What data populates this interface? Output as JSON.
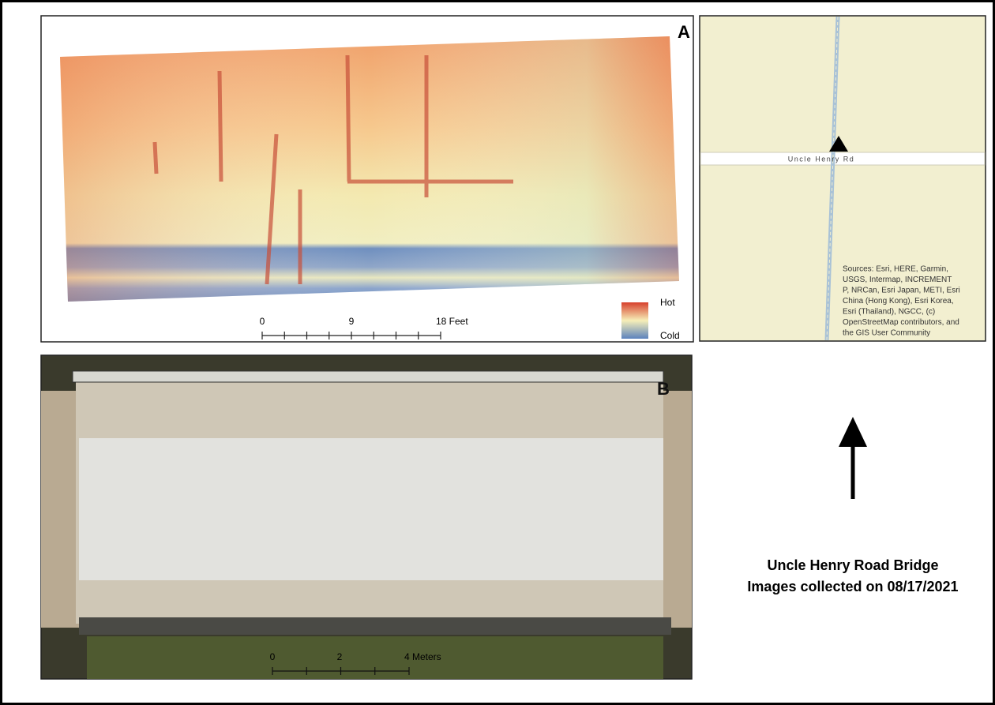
{
  "panel_a": {
    "label": "A",
    "legend": {
      "high": "Hot",
      "low": "Cold"
    },
    "scale": {
      "ticks": [
        "0",
        "9",
        "18 Feet"
      ]
    }
  },
  "panel_b": {
    "label": "B",
    "scale": {
      "ticks": [
        "0",
        "2",
        "4 Meters"
      ]
    }
  },
  "locator_map": {
    "road_label": "Uncle Henry Rd",
    "sources": [
      "Sources: Esri, HERE, Garmin,",
      "USGS, Intermap, INCREMENT",
      "P, NRCan, Esri Japan, METI, Esri",
      "China (Hong Kong), Esri Korea,",
      "Esri (Thailand), NGCC, (c)",
      "OpenStreetMap contributors, and",
      "the GIS User Community"
    ]
  },
  "caption": {
    "lines": [
      "Uncle Henry Road Bridge",
      "Images collected on 08/17/2021"
    ]
  }
}
